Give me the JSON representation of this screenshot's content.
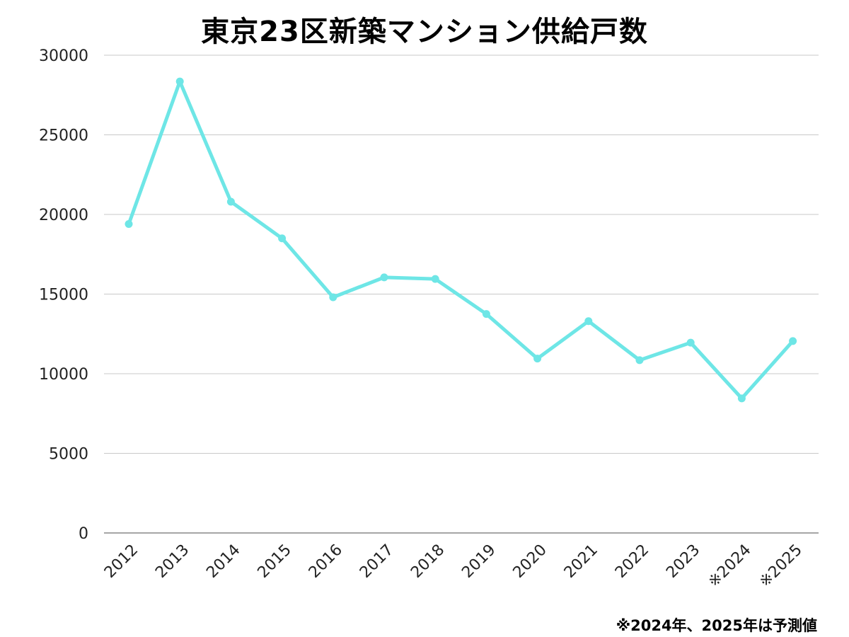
{
  "chart_data": {
    "type": "line",
    "title": "東京23区新築マンション供給戸数",
    "xlabel": "",
    "ylabel": "",
    "categories": [
      "2012",
      "2013",
      "2014",
      "2015",
      "2016",
      "2017",
      "2018",
      "2019",
      "2020",
      "2021",
      "2022",
      "2023",
      "※2024",
      "※2025"
    ],
    "series": [
      {
        "values": [
          19400,
          28350,
          20800,
          18500,
          14800,
          16050,
          15950,
          13750,
          10950,
          13300,
          10850,
          11950,
          8450,
          12050
        ],
        "color": "#6ee6e6"
      }
    ],
    "ylim": [
      0,
      30000
    ],
    "yticks": [
      0,
      5000,
      10000,
      15000,
      20000,
      25000,
      30000
    ],
    "grid": true,
    "legend": "none",
    "note": "※2024年、2025年は予測値"
  }
}
